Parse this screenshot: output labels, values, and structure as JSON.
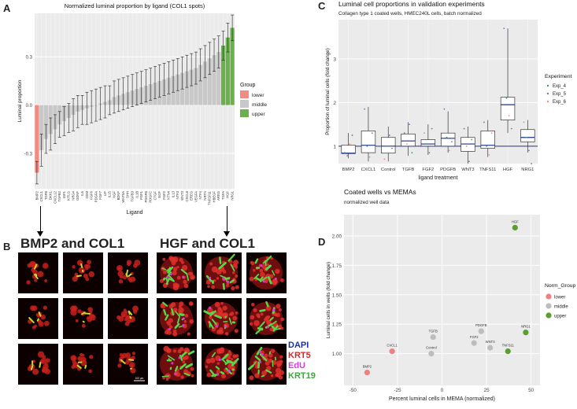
{
  "panels": {
    "a": "A",
    "b": "B",
    "c": "C",
    "d": "D"
  },
  "chart_data": [
    {
      "id": "A",
      "type": "bar",
      "title": "Normalized luminal proportion by ligand (COL1 spots)",
      "xlabel": "Ligand",
      "ylabel": "Luminal proportion",
      "ylim": [
        -0.52,
        0.57
      ],
      "yticks": [
        -0.3,
        0.0,
        0.3
      ],
      "ytick_labels": [
        "-0.3",
        "0.0",
        "0.3"
      ],
      "legend_title": "Group",
      "legend": [
        {
          "label": "lower",
          "color": "#f28b82"
        },
        {
          "label": "middle",
          "color": "#c8c8c8"
        },
        {
          "label": "upper",
          "color": "#6ab04c"
        }
      ],
      "groups": {
        "lower": 1,
        "upper": 3
      },
      "categories": [
        "BMP2",
        "CXCL1",
        "TGFB",
        "DKK1",
        "CXCL12",
        "TGFB2",
        "IGF1",
        "KITLG",
        "NRG4",
        "GDNF",
        "IL6",
        "OSM",
        "FGF6",
        "PDGFA",
        "FGF7",
        "LIF",
        "IL15",
        "NGF",
        "BDNF",
        "WNT5A",
        "SHH",
        "TGFB3",
        "IL1B",
        "FGF1",
        "PDGFB",
        "PDGFC",
        "CTGF",
        "EGF",
        "FGF2",
        "NTN4",
        "IL13",
        "NTF3",
        "WNT3",
        "CXCL8",
        "EREG",
        "VEGFA",
        "NTF4",
        "NRTN",
        "TNFSF11",
        "HBEGF",
        "AREG",
        "TGFA",
        "HGF",
        "NRG1"
      ],
      "values": [
        -0.42,
        -0.28,
        -0.21,
        -0.18,
        -0.15,
        -0.12,
        -0.1,
        -0.08,
        -0.06,
        -0.04,
        -0.03,
        -0.02,
        -0.01,
        0.0,
        0.01,
        0.02,
        0.03,
        0.05,
        0.06,
        0.07,
        0.08,
        0.09,
        0.1,
        0.11,
        0.12,
        0.13,
        0.14,
        0.15,
        0.16,
        0.17,
        0.18,
        0.19,
        0.2,
        0.21,
        0.22,
        0.23,
        0.25,
        0.27,
        0.29,
        0.31,
        0.33,
        0.37,
        0.42,
        0.48
      ],
      "errors": [
        0.07,
        0.1,
        0.09,
        0.1,
        0.09,
        0.08,
        0.09,
        0.09,
        0.1,
        0.1,
        0.09,
        0.1,
        0.1,
        0.1,
        0.1,
        0.1,
        0.09,
        0.1,
        0.1,
        0.1,
        0.1,
        0.1,
        0.1,
        0.1,
        0.1,
        0.1,
        0.1,
        0.1,
        0.1,
        0.1,
        0.1,
        0.1,
        0.1,
        0.1,
        0.1,
        0.1,
        0.1,
        0.1,
        0.1,
        0.1,
        0.1,
        0.09,
        0.09,
        0.08
      ]
    },
    {
      "id": "C",
      "type": "box",
      "title": "Luminal cell proportions in validation experiments",
      "subtitle": "Collagen type 1 coated wells, HMEC240L cells, batch normalized",
      "xlabel": "ligand treatment",
      "ylabel": "Proportion of luminal cells (fold change)",
      "ylim": [
        0.6,
        3.9
      ],
      "yticks": [
        1,
        2,
        3
      ],
      "ytick_labels": [
        "1",
        "2",
        "3"
      ],
      "reference_line": 1.0,
      "legend_title": "Experiment",
      "legend": [
        {
          "label": "Exp_4",
          "color": "#2ca25f"
        },
        {
          "label": "Exp_5",
          "color": "#8c6bb1"
        },
        {
          "label": "Exp_6",
          "color": "#f28b82"
        }
      ],
      "categories": [
        "BMP2",
        "CXCL1",
        "Control",
        "TGFB",
        "FGF2",
        "PDGFB",
        "WNT3",
        "TNFS11",
        "HGF",
        "NRG1"
      ],
      "boxes": [
        {
          "min": 0.72,
          "q1": 0.83,
          "median": 0.84,
          "q3": 1.02,
          "max": 1.3
        },
        {
          "min": 0.65,
          "q1": 0.85,
          "median": 1.02,
          "q3": 1.35,
          "max": 1.9
        },
        {
          "min": 0.65,
          "q1": 0.84,
          "median": 1.0,
          "q3": 1.2,
          "max": 1.45
        },
        {
          "min": 0.78,
          "q1": 1.0,
          "median": 1.12,
          "q3": 1.28,
          "max": 1.55
        },
        {
          "min": 0.8,
          "q1": 1.0,
          "median": 1.05,
          "q3": 1.15,
          "max": 1.5
        },
        {
          "min": 0.85,
          "q1": 1.0,
          "median": 1.18,
          "q3": 1.3,
          "max": 1.8
        },
        {
          "min": 0.6,
          "q1": 0.88,
          "median": 1.05,
          "q3": 1.2,
          "max": 1.45
        },
        {
          "min": 0.75,
          "q1": 0.95,
          "median": 1.02,
          "q3": 1.35,
          "max": 1.6
        },
        {
          "min": 1.3,
          "q1": 1.6,
          "median": 1.95,
          "q3": 2.12,
          "max": 3.7
        },
        {
          "min": 0.85,
          "q1": 1.1,
          "median": 1.2,
          "q3": 1.38,
          "max": 1.6
        }
      ],
      "points": [
        [
          [
            0.85,
            0
          ],
          [
            0.78,
            1
          ],
          [
            1.05,
            2
          ],
          [
            1.25,
            0
          ]
        ],
        [
          [
            1.85,
            1
          ],
          [
            1.0,
            0
          ],
          [
            0.75,
            2
          ],
          [
            1.3,
            1
          ]
        ],
        [
          [
            0.7,
            2
          ],
          [
            1.0,
            0
          ],
          [
            1.25,
            1
          ],
          [
            0.95,
            1
          ]
        ],
        [
          [
            1.3,
            0
          ],
          [
            1.05,
            2
          ],
          [
            1.5,
            1
          ],
          [
            0.85,
            0
          ]
        ],
        [
          [
            1.3,
            2
          ],
          [
            1.05,
            0
          ],
          [
            0.85,
            1
          ],
          [
            1.4,
            1
          ]
        ],
        [
          [
            1.85,
            1
          ],
          [
            1.2,
            0
          ],
          [
            0.9,
            2
          ],
          [
            1.1,
            1
          ]
        ],
        [
          [
            1.4,
            0
          ],
          [
            1.0,
            2
          ],
          [
            0.65,
            1
          ],
          [
            1.15,
            0
          ]
        ],
        [
          [
            1.55,
            1
          ],
          [
            1.0,
            0
          ],
          [
            0.8,
            2
          ],
          [
            1.3,
            2
          ]
        ],
        [
          [
            3.7,
            1
          ],
          [
            2.1,
            0
          ],
          [
            1.7,
            2
          ],
          [
            1.4,
            0
          ]
        ],
        [
          [
            1.55,
            2
          ],
          [
            1.2,
            0
          ],
          [
            0.9,
            1
          ],
          [
            0.6,
            1
          ]
        ]
      ]
    },
    {
      "id": "D",
      "type": "scatter",
      "title": "Coated wells vs MEMAs",
      "subtitle": "normalized well data",
      "xlabel": "Percent luminal cells in MEMA (normalized)",
      "ylabel": "Luminal cells in wells (fold change)",
      "xlim": [
        -55,
        55
      ],
      "ylim": [
        0.73,
        2.18
      ],
      "xticks": [
        -50,
        -25,
        0,
        25,
        50
      ],
      "xtick_labels": [
        "-50",
        "-25",
        "0",
        "25",
        "50"
      ],
      "yticks": [
        1.0,
        1.25,
        1.5,
        1.75,
        2.0
      ],
      "ytick_labels": [
        "1.00",
        "1.25",
        "1.50",
        "1.75",
        "2.00"
      ],
      "legend_title": "Norm_Group",
      "legend": [
        {
          "label": "lower",
          "color": "#f08080"
        },
        {
          "label": "middle",
          "color": "#bdbdbd"
        },
        {
          "label": "upper",
          "color": "#5aa02c"
        }
      ],
      "points": [
        {
          "label": "BMP2",
          "x": -42,
          "y": 0.84,
          "group": 0
        },
        {
          "label": "CXCL1",
          "x": -28,
          "y": 1.02,
          "group": 0
        },
        {
          "label": "Control",
          "x": -6,
          "y": 1.0,
          "group": 1
        },
        {
          "label": "TGFB",
          "x": -5,
          "y": 1.14,
          "group": 1
        },
        {
          "label": "FGF2",
          "x": 18,
          "y": 1.09,
          "group": 1
        },
        {
          "label": "PDGFB",
          "x": 22,
          "y": 1.19,
          "group": 1
        },
        {
          "label": "WNT3",
          "x": 27,
          "y": 1.05,
          "group": 1
        },
        {
          "label": "TNFS11",
          "x": 37,
          "y": 1.02,
          "group": 2
        },
        {
          "label": "HGF",
          "x": 41,
          "y": 2.07,
          "group": 2
        },
        {
          "label": "NRG1",
          "x": 47,
          "y": 1.18,
          "group": 2
        }
      ]
    }
  ],
  "micrographs": {
    "left_title": "BMP2 and COL1",
    "right_title": "HGF and COL1",
    "scale_bar_label": "100 µm",
    "channels": [
      {
        "label": "DAPI",
        "color": "#1a2ea8"
      },
      {
        "label": "KRT5",
        "color": "#d62728"
      },
      {
        "label": "EdU",
        "color": "#d63be0"
      },
      {
        "label": "KRT19",
        "color": "#3aa83a"
      }
    ]
  }
}
